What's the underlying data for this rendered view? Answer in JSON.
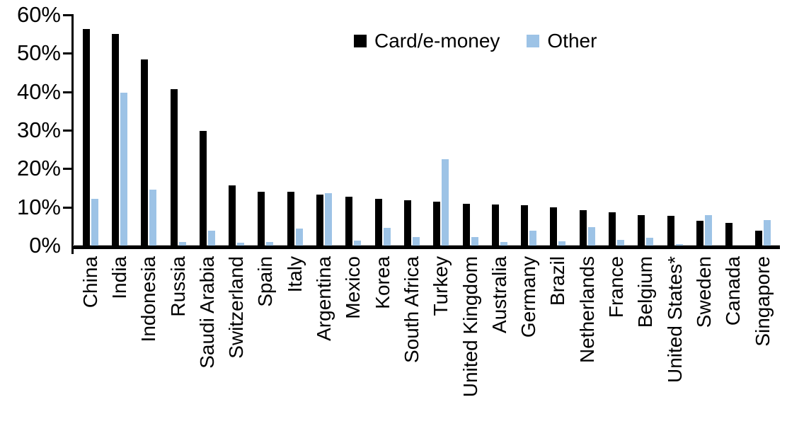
{
  "chart_data": {
    "type": "bar",
    "title": "",
    "xlabel": "",
    "ylabel": "",
    "ylim": [
      0,
      60
    ],
    "yticks": [
      0,
      10,
      20,
      30,
      40,
      50,
      60
    ],
    "ytick_format": "percent",
    "grid": false,
    "legend_position": "top-center",
    "categories": [
      "China",
      "India",
      "Indonesia",
      "Russia",
      "Saudi Arabia",
      "Switzerland",
      "Spain",
      "Italy",
      "Argentina",
      "Mexico",
      "Korea",
      "South Africa",
      "Turkey",
      "United Kingdom",
      "Australia",
      "Germany",
      "Brazil",
      "Netherlands",
      "France",
      "Belgium",
      "United States*",
      "Sweden",
      "Canada",
      "Singapore"
    ],
    "series": [
      {
        "name": "Card/e-money",
        "color": "#000000",
        "values": [
          56.3,
          55.0,
          48.4,
          40.6,
          29.8,
          15.6,
          14.0,
          13.9,
          13.2,
          12.7,
          12.1,
          11.7,
          11.4,
          10.8,
          10.6,
          10.5,
          9.9,
          9.2,
          8.6,
          8.0,
          7.8,
          6.4,
          5.9,
          3.8
        ]
      },
      {
        "name": "Other",
        "color": "#9DC3E6",
        "values": [
          12.2,
          39.7,
          14.5,
          1.0,
          3.9,
          0.7,
          0.9,
          4.5,
          13.7,
          1.2,
          4.6,
          2.3,
          22.5,
          2.3,
          1.0,
          3.9,
          1.1,
          4.7,
          1.5,
          2.0,
          0.3,
          7.9,
          0.0,
          6.6
        ]
      }
    ]
  },
  "legend": {
    "items": [
      {
        "label": "Card/e-money",
        "color": "#000000"
      },
      {
        "label": "Other",
        "color": "#9DC3E6"
      }
    ]
  }
}
